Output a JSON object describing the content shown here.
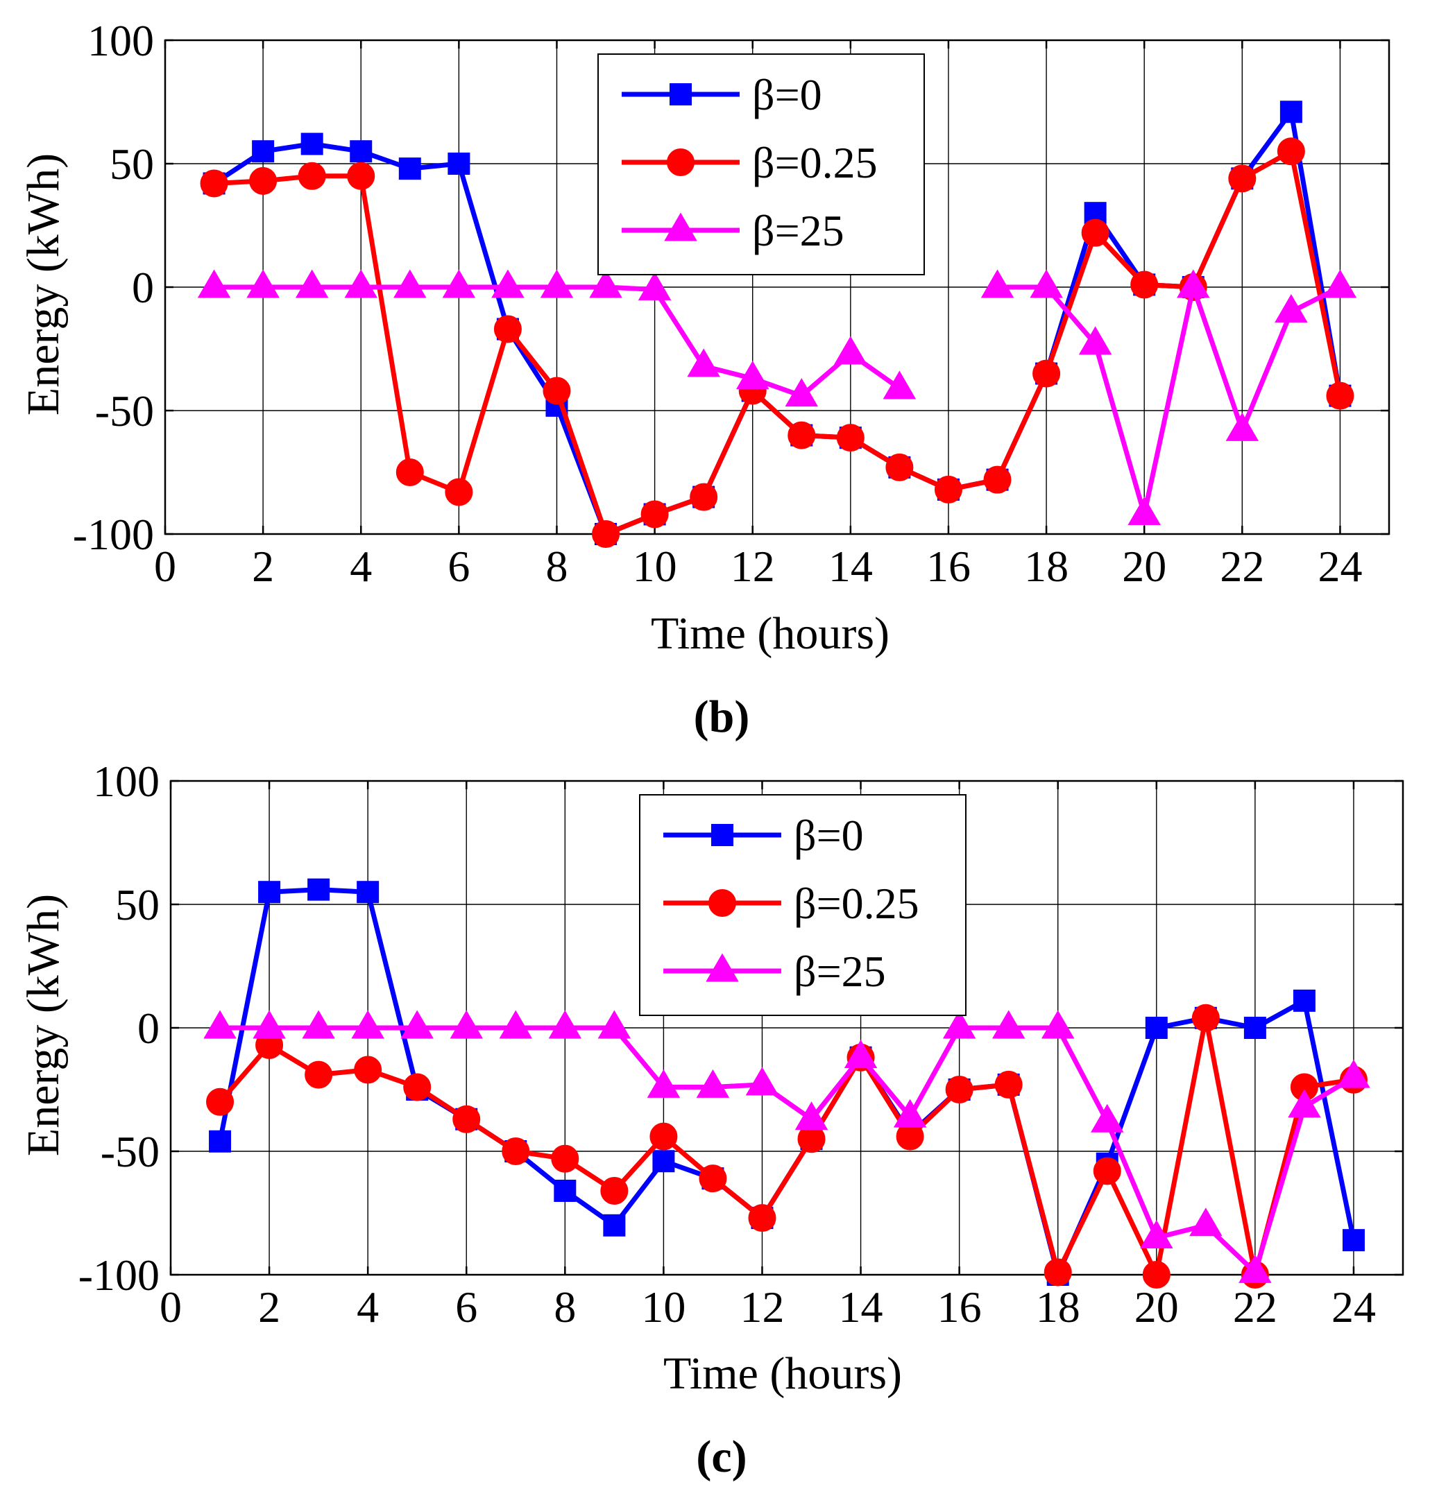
{
  "colors": {
    "beta0": "#0000ff",
    "beta025": "#ff0000",
    "beta25": "#ff00ff",
    "grid": "#000000"
  },
  "chart_data": [
    {
      "type": "line",
      "caption": "(b)",
      "xlabel": "Time (hours)",
      "ylabel": "Energy (kWh)",
      "xlim": [
        0,
        25
      ],
      "ylim": [
        -100,
        100
      ],
      "xticks": [
        "0",
        "2",
        "4",
        "6",
        "8",
        "10",
        "12",
        "14",
        "16",
        "18",
        "20",
        "22",
        "24"
      ],
      "yticks": [
        "100",
        "50",
        "0",
        "-50",
        "-100"
      ],
      "grid": true,
      "legend_position": "top-center",
      "x": [
        1,
        2,
        3,
        4,
        5,
        6,
        7,
        8,
        9,
        10,
        11,
        12,
        13,
        14,
        15,
        16,
        17,
        18,
        19,
        20,
        21,
        22,
        23,
        24
      ],
      "series": [
        {
          "name": "β=0",
          "marker": "square",
          "color_key": "beta0",
          "values": [
            42,
            55,
            58,
            55,
            48,
            50,
            -17,
            -48,
            -100,
            -92,
            -85,
            -42,
            -60,
            -61,
            -73,
            -82,
            -78,
            -35,
            30,
            1,
            0,
            44,
            71,
            -44
          ]
        },
        {
          "name": "β=0.25",
          "marker": "circle",
          "color_key": "beta025",
          "values": [
            42,
            43,
            45,
            45,
            -75,
            -83,
            -17,
            -42,
            -100,
            -92,
            -85,
            -42,
            -60,
            -61,
            -73,
            -82,
            -78,
            -35,
            22,
            1,
            0,
            44,
            55,
            -44
          ]
        },
        {
          "name": "β=25",
          "marker": "triangle",
          "color_key": "beta25",
          "values": [
            0,
            0,
            0,
            0,
            0,
            0,
            0,
            0,
            0,
            -1,
            -32,
            -37,
            -44,
            -27,
            -41,
            null,
            0,
            0,
            -23,
            -92,
            0,
            -58,
            -10,
            0
          ]
        }
      ]
    },
    {
      "type": "line",
      "caption": "(c)",
      "xlabel": "Time (hours)",
      "ylabel": "Energy (kWh)",
      "xlim": [
        0,
        25
      ],
      "ylim": [
        -100,
        100
      ],
      "xticks": [
        "0",
        "2",
        "4",
        "6",
        "8",
        "10",
        "12",
        "14",
        "16",
        "18",
        "20",
        "22",
        "24"
      ],
      "yticks": [
        "100",
        "50",
        "0",
        "-50",
        "-100"
      ],
      "grid": true,
      "legend_position": "top-center",
      "x": [
        1,
        2,
        3,
        4,
        5,
        6,
        7,
        8,
        9,
        10,
        11,
        12,
        13,
        14,
        15,
        16,
        17,
        18,
        19,
        20,
        21,
        22,
        23,
        24
      ],
      "series": [
        {
          "name": "β=0",
          "marker": "square",
          "color_key": "beta0",
          "values": [
            -46,
            55,
            56,
            55,
            -25,
            -37,
            -50,
            -66,
            -80,
            -54,
            -61,
            -77,
            -45,
            -12,
            -43,
            -25,
            -23,
            -100,
            -55,
            0,
            4,
            0,
            11,
            -86
          ]
        },
        {
          "name": "β=0.25",
          "marker": "circle",
          "color_key": "beta025",
          "values": [
            -30,
            -7,
            -19,
            -17,
            -24,
            -37,
            -50,
            -53,
            -66,
            -44,
            -61,
            -77,
            -45,
            -12,
            -44,
            -25,
            -23,
            -99,
            -58,
            -100,
            4,
            -100,
            -24,
            -21
          ]
        },
        {
          "name": "β=25",
          "marker": "triangle",
          "color_key": "beta25",
          "values": [
            0,
            0,
            0,
            0,
            0,
            0,
            0,
            0,
            0,
            -24,
            -24,
            -23,
            -37,
            -12,
            -36,
            0,
            0,
            0,
            -38,
            -85,
            -80,
            -99,
            -32,
            -20
          ]
        }
      ]
    }
  ]
}
